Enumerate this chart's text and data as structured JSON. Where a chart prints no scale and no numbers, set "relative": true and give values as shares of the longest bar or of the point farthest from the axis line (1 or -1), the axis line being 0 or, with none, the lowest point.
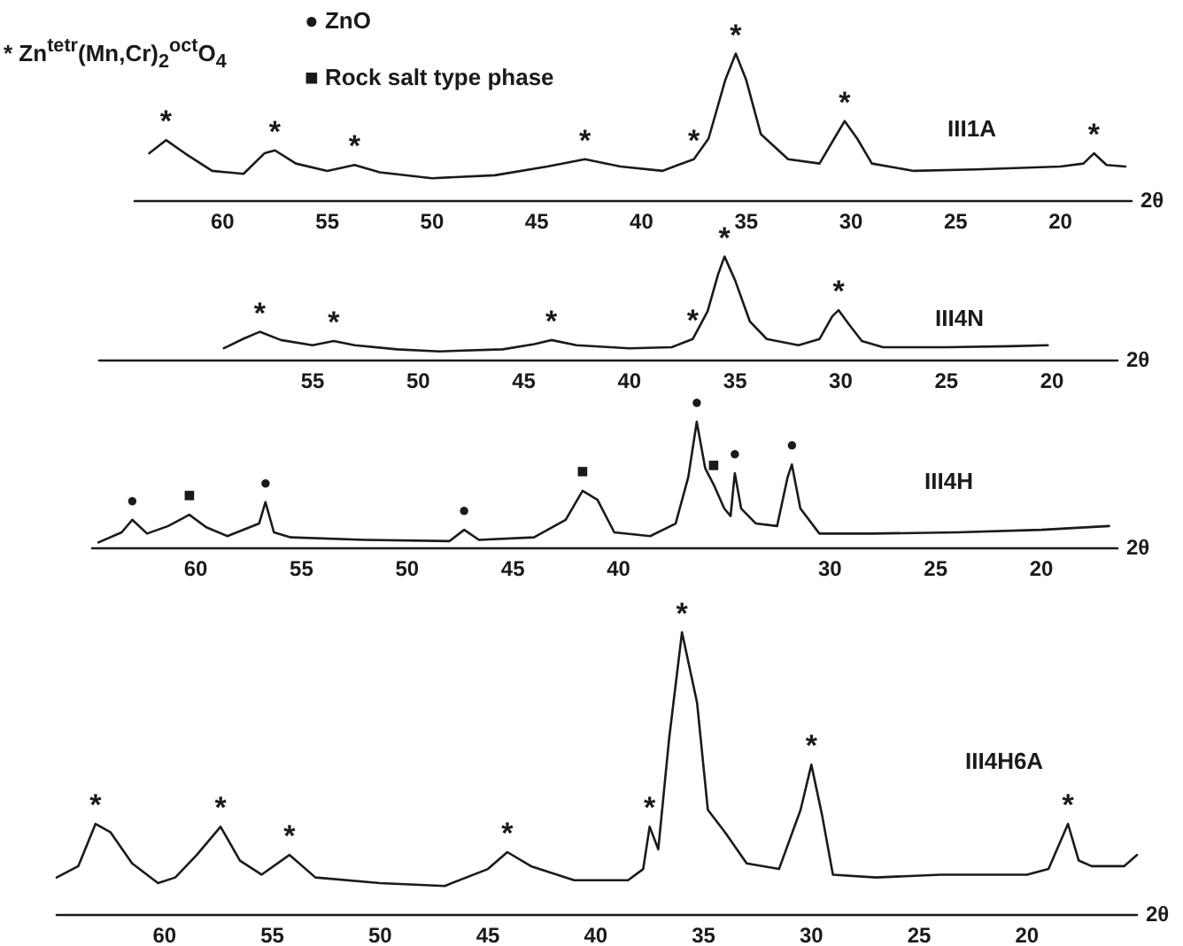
{
  "chart_data": [
    {
      "type": "line",
      "relative": true,
      "xlabel": "2θ",
      "xlim": [
        64.2,
        16.6
      ],
      "xticks": [
        60,
        55,
        50,
        45,
        40,
        35,
        30,
        25,
        20
      ],
      "grid": false,
      "legend": false,
      "marker": "none",
      "line_style": "solid",
      "annotations": [
        "● ZnO",
        "* Zn$^{tetr}$(Mn,Cr)$_{2}$$^{oct}$O$_{4}$",
        "■ Rock salt type phase",
        {
          "text": "*",
          "x": 62.7,
          "y": 0.41
        },
        {
          "text": "*",
          "x": 57.5,
          "y": 0.34
        },
        {
          "text": "*",
          "x": 53.7,
          "y": 0.24
        },
        {
          "text": "*",
          "x": 42.7,
          "y": 0.28
        },
        {
          "text": "*",
          "x": 37.5,
          "y": 0.28
        },
        {
          "text": "*",
          "x": 35.5,
          "y": 1
        },
        {
          "text": "*",
          "x": 30.3,
          "y": 0.54
        },
        {
          "text": "*",
          "x": 18.4,
          "y": 0.32
        }
      ],
      "series": [
        {
          "name": "III1A",
          "color": "#1a1a1a",
          "x": [
            63.5,
            62.7,
            61.8,
            60.5,
            59,
            58,
            57.5,
            56.5,
            55,
            53.7,
            52.5,
            50,
            47,
            44.5,
            42.7,
            41,
            39,
            37.5,
            36.8,
            36,
            35.5,
            35,
            34.3,
            33,
            31.5,
            30.8,
            30.3,
            29.7,
            29,
            27,
            24,
            20,
            18.9,
            18.4,
            17.8,
            16.9
          ],
          "values": [
            0.32,
            0.41,
            0.32,
            0.2,
            0.18,
            0.32,
            0.34,
            0.25,
            0.2,
            0.24,
            0.19,
            0.15,
            0.17,
            0.23,
            0.28,
            0.23,
            0.2,
            0.28,
            0.42,
            0.82,
            1,
            0.82,
            0.45,
            0.28,
            0.25,
            0.42,
            0.54,
            0.42,
            0.25,
            0.2,
            0.21,
            0.23,
            0.25,
            0.32,
            0.24,
            0.23
          ]
        }
      ]
    },
    {
      "type": "line",
      "relative": true,
      "xlabel": "2θ",
      "xlim": [
        65.1,
        16.9
      ],
      "xticks": [
        55,
        50,
        45,
        40,
        35,
        30,
        25,
        20
      ],
      "grid": false,
      "legend": false,
      "marker": "none",
      "line_style": "solid",
      "annotations": [
        {
          "text": "*",
          "x": 57.5,
          "y": 0.27
        },
        {
          "text": "*",
          "x": 54,
          "y": 0.18
        },
        {
          "text": "*",
          "x": 43.7,
          "y": 0.19
        },
        {
          "text": "*",
          "x": 37,
          "y": 0.2
        },
        {
          "text": "*",
          "x": 35.5,
          "y": 1
        },
        {
          "text": "*",
          "x": 30.1,
          "y": 0.48
        }
      ],
      "series": [
        {
          "name": "III4N",
          "color": "#1a1a1a",
          "x": [
            59.2,
            58.3,
            57.5,
            56.5,
            55,
            54,
            53,
            51,
            49,
            46,
            44.5,
            43.7,
            42.5,
            40,
            38,
            37,
            36.3,
            35.8,
            35.5,
            35,
            34.3,
            33.5,
            32,
            31,
            30.4,
            30.1,
            29.6,
            29,
            28,
            25,
            22,
            20.2
          ],
          "values": [
            0.11,
            0.2,
            0.27,
            0.19,
            0.14,
            0.18,
            0.14,
            0.1,
            0.08,
            0.1,
            0.15,
            0.19,
            0.14,
            0.11,
            0.12,
            0.2,
            0.47,
            0.83,
            1,
            0.77,
            0.37,
            0.2,
            0.14,
            0.2,
            0.42,
            0.48,
            0.34,
            0.18,
            0.12,
            0.12,
            0.13,
            0.14
          ]
        }
      ]
    },
    {
      "type": "line",
      "relative": true,
      "xlabel": "2θ",
      "xlim": [
        64.9,
        16.4
      ],
      "xticks": [
        60,
        55,
        50,
        45,
        40,
        30,
        25,
        20
      ],
      "grid": false,
      "legend": false,
      "marker": "none",
      "line_style": "solid",
      "annotations": [
        {
          "text": "●",
          "x": 63,
          "y": 0.22
        },
        {
          "text": "■",
          "x": 60.3,
          "y": 0.26
        },
        {
          "text": "●",
          "x": 56.7,
          "y": 0.36
        },
        {
          "text": "●",
          "x": 47.3,
          "y": 0.14
        },
        {
          "text": "■",
          "x": 41.7,
          "y": 0.45
        },
        {
          "text": "●",
          "x": 36.3,
          "y": 1
        },
        {
          "text": "■",
          "x": 35.5,
          "y": 0.5
        },
        {
          "text": "●",
          "x": 34.5,
          "y": 0.59
        },
        {
          "text": "●",
          "x": 31.8,
          "y": 0.66
        }
      ],
      "series": [
        {
          "name": "III4H",
          "color": "#1a1a1a",
          "x": [
            64.6,
            63.5,
            63,
            62.3,
            61.3,
            60.3,
            59.5,
            58.5,
            57,
            56.7,
            56.3,
            55.5,
            52,
            48,
            47.3,
            46.6,
            44,
            42.5,
            41.7,
            41,
            40.2,
            38.5,
            37.3,
            36.7,
            36.3,
            35.9,
            35.5,
            35,
            34.7,
            34.5,
            34.2,
            33.5,
            32.5,
            32,
            31.8,
            31.4,
            30.5,
            28,
            24,
            20,
            16.8
          ],
          "values": [
            0.04,
            0.12,
            0.22,
            0.11,
            0.17,
            0.26,
            0.16,
            0.09,
            0.19,
            0.36,
            0.12,
            0.08,
            0.06,
            0.05,
            0.14,
            0.06,
            0.08,
            0.22,
            0.45,
            0.38,
            0.12,
            0.09,
            0.19,
            0.56,
            1,
            0.63,
            0.5,
            0.31,
            0.25,
            0.59,
            0.31,
            0.19,
            0.17,
            0.56,
            0.66,
            0.31,
            0.11,
            0.11,
            0.12,
            0.14,
            0.17
          ]
        }
      ]
    },
    {
      "type": "line",
      "relative": true,
      "xlabel": "2θ",
      "xlim": [
        65,
        14.9
      ],
      "xticks": [
        60,
        55,
        50,
        45,
        40,
        35,
        30,
        25,
        20
      ],
      "grid": false,
      "legend": false,
      "marker": "none",
      "line_style": "solid",
      "annotations": [
        {
          "text": "*",
          "x": 63.2,
          "y": 0.32
        },
        {
          "text": "*",
          "x": 57.4,
          "y": 0.31
        },
        {
          "text": "*",
          "x": 54.2,
          "y": 0.21
        },
        {
          "text": "*",
          "x": 44.1,
          "y": 0.22
        },
        {
          "text": "*",
          "x": 37.5,
          "y": 0.31
        },
        {
          "text": "*",
          "x": 36,
          "y": 1
        },
        {
          "text": "*",
          "x": 30,
          "y": 0.53
        },
        {
          "text": "*",
          "x": 18.1,
          "y": 0.32
        }
      ],
      "series": [
        {
          "name": "III4H6A",
          "color": "#1a1a1a",
          "x": [
            65,
            64,
            63.2,
            62.5,
            61.5,
            60.3,
            59.5,
            58.5,
            57.4,
            56.5,
            55.5,
            54.2,
            53,
            50,
            47,
            45,
            44.1,
            43,
            41,
            38.5,
            37.8,
            37.5,
            37.1,
            36.6,
            36,
            35.3,
            34.8,
            34,
            33,
            31.5,
            30.5,
            30,
            29.5,
            29,
            27,
            24,
            20,
            19,
            18.1,
            17.6,
            17,
            15.5,
            14.9
          ],
          "values": [
            0.13,
            0.17,
            0.32,
            0.29,
            0.18,
            0.11,
            0.13,
            0.21,
            0.31,
            0.19,
            0.14,
            0.21,
            0.13,
            0.11,
            0.1,
            0.16,
            0.22,
            0.17,
            0.12,
            0.12,
            0.16,
            0.31,
            0.23,
            0.62,
            1,
            0.75,
            0.37,
            0.29,
            0.18,
            0.16,
            0.37,
            0.53,
            0.35,
            0.14,
            0.13,
            0.14,
            0.14,
            0.16,
            0.32,
            0.19,
            0.17,
            0.17,
            0.21
          ]
        }
      ]
    }
  ]
}
